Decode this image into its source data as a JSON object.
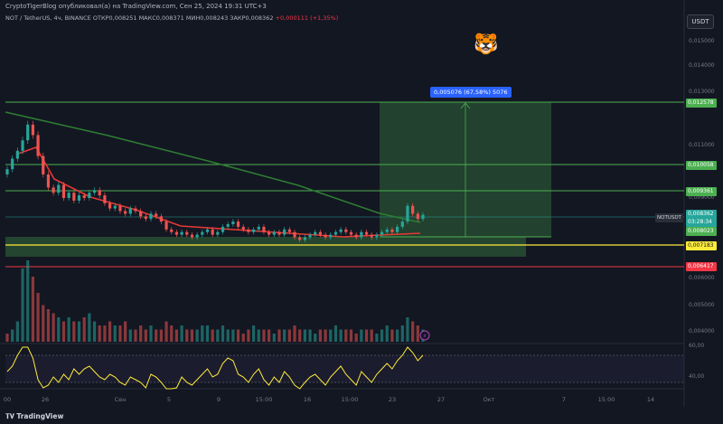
{
  "header": {
    "title": "CryptoTigerBlog опубликовал(а) на TradingView.com, Сен 25, 2024 19:31 UTC+3",
    "symbol": "NOT / TetherUS, 4ч, BINANCE",
    "ohlc": "ОТКР0,008251  МАКС0,008371  МИН0,008243  ЗАКР0,008362",
    "change": "+0,000111 (+1,35%)"
  },
  "currency_button": "USDT",
  "tiger_icon": "🐯",
  "position_label": "0,005076 (67,58%) 5076",
  "symbol_tag": "NOTUSDT",
  "brand": "TradingView",
  "colors": {
    "background": "#131722",
    "up": "#26a69a",
    "down": "#ef5350",
    "ma_red": "#e53935",
    "ma_green": "#2e7d32",
    "rsi": "#ffeb3b",
    "level_green": "#4caf50",
    "level_yellow": "#ffeb3b",
    "level_red": "#f23645",
    "target_zone": "#4caf50"
  },
  "chart_data": {
    "type": "candlestick",
    "y_axis_ticks": [
      "0,015000",
      "0,014000",
      "0,013000",
      "0,011000",
      "0,009000",
      "0,006000",
      "0,005000",
      "0,004000"
    ],
    "x_axis_ticks": [
      "00",
      "26",
      "Сен",
      "5",
      "9",
      "15:00",
      "16",
      "15:00",
      "23",
      "27",
      "Окт",
      "7",
      "15:00",
      "14"
    ],
    "rsi_ticks": [
      "60,00",
      "40,00"
    ],
    "levels": [
      {
        "label": "0,012578",
        "color": "green"
      },
      {
        "label": "0,010058",
        "color": "green"
      },
      {
        "label": "0,009361",
        "color": "green"
      },
      {
        "label": "0,008362",
        "color": "teal"
      },
      {
        "label": "03:28:34",
        "color": "teal"
      },
      {
        "label": "0,008023",
        "color": "green"
      },
      {
        "label": "0,007183",
        "color": "yellow"
      },
      {
        "label": "0,006417",
        "color": "red"
      }
    ],
    "close_prices": [
      0.0101,
      0.0105,
      0.0108,
      0.0112,
      0.0118,
      0.0114,
      0.0106,
      0.0099,
      0.0094,
      0.0092,
      0.0095,
      0.009,
      0.0092,
      0.0089,
      0.0091,
      0.009,
      0.0092,
      0.0093,
      0.0091,
      0.0088,
      0.0086,
      0.0087,
      0.0085,
      0.0084,
      0.0086,
      0.0085,
      0.0083,
      0.0082,
      0.0084,
      0.0083,
      0.0081,
      0.0078,
      0.0077,
      0.0076,
      0.0077,
      0.0076,
      0.0075,
      0.0076,
      0.0077,
      0.0078,
      0.0076,
      0.0077,
      0.0079,
      0.008,
      0.0081,
      0.0079,
      0.0078,
      0.0077,
      0.0078,
      0.0079,
      0.0077,
      0.0076,
      0.0077,
      0.0076,
      0.0078,
      0.0077,
      0.0075,
      0.0074,
      0.0075,
      0.0076,
      0.0077,
      0.0076,
      0.0075,
      0.0076,
      0.0077,
      0.0078,
      0.0077,
      0.0076,
      0.0075,
      0.0077,
      0.0076,
      0.0075,
      0.0076,
      0.0077,
      0.0078,
      0.0077,
      0.0079,
      0.0081,
      0.0087,
      0.0084,
      0.0082,
      0.00836
    ],
    "volumes": [
      2,
      3,
      5,
      18,
      20,
      16,
      12,
      9,
      8,
      7,
      6,
      5,
      6,
      5,
      5,
      6,
      7,
      5,
      4,
      4,
      5,
      4,
      4,
      5,
      3,
      3,
      4,
      3,
      4,
      3,
      3,
      5,
      4,
      3,
      4,
      3,
      3,
      3,
      4,
      4,
      3,
      3,
      4,
      3,
      3,
      3,
      2,
      3,
      4,
      3,
      3,
      3,
      2,
      3,
      3,
      3,
      4,
      3,
      3,
      3,
      2,
      3,
      3,
      3,
      4,
      3,
      3,
      3,
      2,
      3,
      3,
      3,
      2,
      3,
      4,
      3,
      3,
      4,
      6,
      5,
      4,
      3
    ],
    "rsi_values": [
      48,
      52,
      60,
      68,
      70,
      58,
      42,
      36,
      38,
      44,
      40,
      46,
      42,
      50,
      46,
      50,
      52,
      48,
      44,
      42,
      46,
      44,
      40,
      38,
      44,
      42,
      40,
      36,
      46,
      44,
      40,
      32,
      34,
      36,
      44,
      40,
      38,
      42,
      46,
      50,
      44,
      46,
      54,
      58,
      56,
      46,
      44,
      40,
      46,
      50,
      42,
      38,
      44,
      40,
      48,
      44,
      38,
      34,
      40,
      44,
      46,
      42,
      38,
      44,
      48,
      52,
      46,
      42,
      38,
      48,
      44,
      40,
      46,
      50,
      54,
      50,
      56,
      60,
      72,
      62,
      56,
      60
    ]
  }
}
